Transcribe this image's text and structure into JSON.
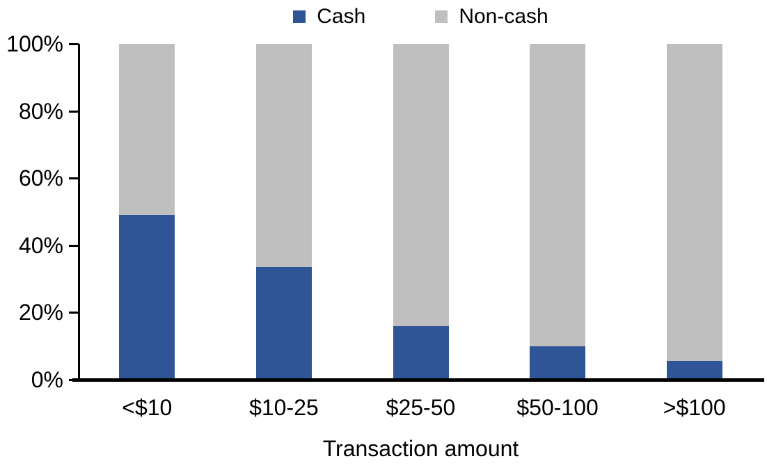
{
  "chart_data": {
    "type": "bar",
    "subtype": "stacked-100-percent",
    "title": "",
    "xlabel": "Transaction amount",
    "ylabel": "",
    "categories": [
      "<$10",
      "$10-25",
      "$25-50",
      "$50-100",
      ">$100"
    ],
    "series": [
      {
        "name": "Cash",
        "color": "#2F5597",
        "values": [
          49,
          33.5,
          16,
          10,
          5.5
        ]
      },
      {
        "name": "Non-cash",
        "color": "#BFBFBF",
        "values": [
          51,
          66.5,
          84,
          90,
          94.5
        ]
      }
    ],
    "ylim": [
      0,
      100
    ],
    "ytick_values": [
      0,
      20,
      40,
      60,
      80,
      100
    ],
    "ytick_labels": [
      "0%",
      "20%",
      "40%",
      "60%",
      "80%",
      "100%"
    ],
    "grid": false,
    "legend_position": "top-center",
    "axis_color": "#000000",
    "text_color": "#000000",
    "background_color": "#FFFFFF"
  }
}
